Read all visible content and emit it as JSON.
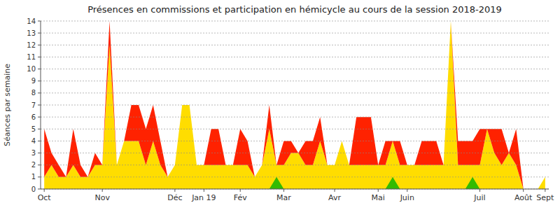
{
  "chart_data": {
    "type": "area",
    "stacked": true,
    "grid": true,
    "title": "Présences en commissions et participation en hémicycle au cours de la session 2018-2019",
    "y_label": "Séances par semaine",
    "categories": [
      "Oct",
      null,
      null,
      null,
      null,
      null,
      null,
      null,
      "Nov",
      null,
      null,
      null,
      null,
      null,
      null,
      null,
      null,
      null,
      "Déc",
      null,
      null,
      null,
      "Jan 19",
      null,
      null,
      null,
      null,
      "Fév",
      null,
      null,
      null,
      null,
      null,
      "Mar",
      null,
      null,
      null,
      null,
      null,
      null,
      "Avr",
      null,
      null,
      null,
      null,
      null,
      "Mai",
      null,
      null,
      null,
      "Juin",
      null,
      null,
      null,
      null,
      null,
      null,
      null,
      null,
      null,
      "Juil",
      null,
      null,
      null,
      null,
      null,
      "Août",
      null,
      null,
      "Sept"
    ],
    "ylim": [
      0,
      14
    ],
    "yticks": [
      0,
      1,
      2,
      3,
      4,
      5,
      6,
      7,
      8,
      9,
      10,
      11,
      12,
      13,
      14
    ],
    "series": [
      {
        "color": "#ffdd00",
        "values": [
          1,
          2,
          1,
          1,
          2,
          1,
          1,
          2,
          2,
          12,
          2,
          4,
          4,
          4,
          2,
          4,
          2,
          1,
          2,
          7,
          7,
          2,
          2,
          2,
          2,
          2,
          2,
          2,
          2,
          1,
          2,
          5,
          2,
          2,
          3,
          3,
          2,
          2,
          4,
          2,
          2,
          4,
          2,
          2,
          2,
          2,
          2,
          2,
          4,
          2,
          2,
          2,
          2,
          2,
          2,
          2,
          14,
          2,
          2,
          2,
          2,
          5,
          3,
          2,
          3,
          2,
          0,
          0,
          0,
          1
        ]
      },
      {
        "color": "#ff2200",
        "values": [
          4,
          1,
          1,
          0,
          3,
          1,
          0,
          1,
          0,
          2,
          0,
          0,
          3,
          3,
          3,
          3,
          2,
          0,
          0,
          0,
          0,
          0,
          0,
          3,
          3,
          0,
          0,
          3,
          2,
          0,
          0,
          2,
          0,
          2,
          1,
          0,
          2,
          2,
          2,
          0,
          0,
          0,
          0,
          4,
          4,
          4,
          0,
          2,
          0,
          2,
          0,
          0,
          2,
          2,
          2,
          0,
          0,
          2,
          2,
          2,
          3,
          0,
          2,
          3,
          0,
          3,
          0,
          0,
          0,
          0
        ]
      },
      {
        "color": "#33bb00",
        "stacked": false,
        "values": [
          0,
          0,
          0,
          0,
          0,
          0,
          0,
          0,
          0,
          0,
          0,
          0,
          0,
          0,
          0,
          0,
          0,
          0,
          0,
          0,
          0,
          0,
          0,
          0,
          0,
          0,
          0,
          0,
          0,
          0,
          0,
          0,
          1,
          0,
          0,
          0,
          0,
          0,
          0,
          0,
          0,
          0,
          0,
          0,
          0,
          0,
          0,
          0,
          1,
          0,
          0,
          0,
          0,
          0,
          0,
          0,
          0,
          0,
          0,
          1,
          0,
          0,
          0,
          0,
          0,
          0,
          0,
          0,
          0,
          0
        ]
      }
    ]
  }
}
